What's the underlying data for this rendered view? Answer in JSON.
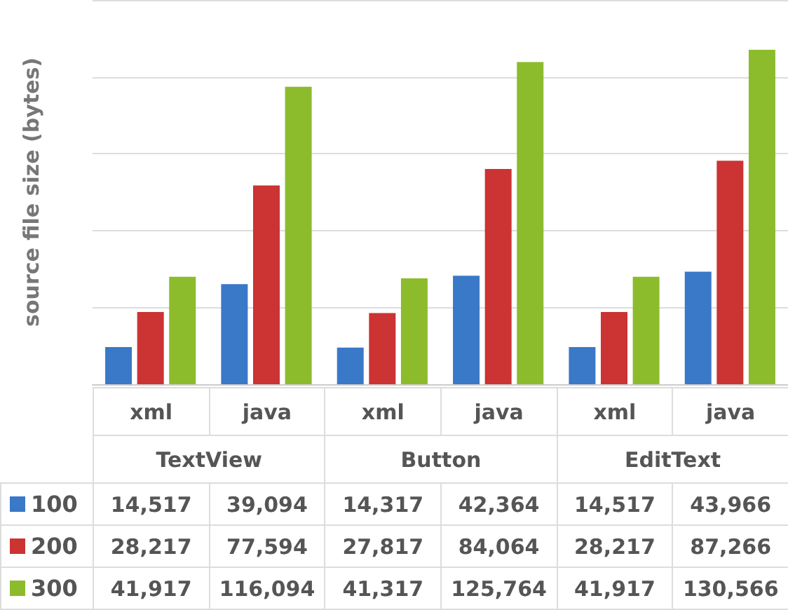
{
  "chart_data": {
    "type": "bar",
    "ylabel": "source file size (bytes)",
    "categories": [
      "xml",
      "java",
      "xml",
      "java",
      "xml",
      "java"
    ],
    "annotations": [
      "TextView",
      "Button",
      "EditText"
    ],
    "series": [
      {
        "name": "100",
        "color": "#3a78c8",
        "values": [
          14517,
          39094,
          14317,
          42364,
          14517,
          43966
        ],
        "value_labels": [
          "14,517",
          "39,094",
          "14,317",
          "42,364",
          "14,517",
          "43,966"
        ]
      },
      {
        "name": "200",
        "color": "#cc3333",
        "values": [
          28217,
          77594,
          27817,
          84064,
          28217,
          87266
        ],
        "value_labels": [
          "28,217",
          "77,594",
          "27,817",
          "84,064",
          "28,217",
          "87,266"
        ]
      },
      {
        "name": "300",
        "color": "#8cbc2c",
        "values": [
          41917,
          116094,
          41317,
          125764,
          41917,
          130566
        ],
        "value_labels": [
          "41,917",
          "116,094",
          "41,317",
          "125,764",
          "41,917",
          "130,566"
        ]
      }
    ],
    "grid": true,
    "legend": "bottom"
  }
}
